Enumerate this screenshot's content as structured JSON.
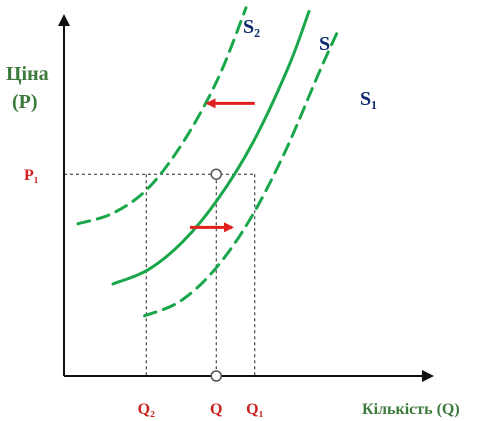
{
  "chart_data": {
    "type": "line",
    "title": "",
    "ylabel": [
      "Ціна",
      "(P)"
    ],
    "xlabel": "Кількість (Q)",
    "xlim": [
      0,
      10
    ],
    "ylim": [
      0,
      10
    ],
    "grid": false,
    "series": [
      {
        "name": "S",
        "style": "solid",
        "color": "#1aa64b",
        "points": [
          [
            1.4,
            2.6
          ],
          [
            2.4,
            3.0
          ],
          [
            3.4,
            3.8
          ],
          [
            4.4,
            5.0
          ],
          [
            5.4,
            6.6
          ],
          [
            6.4,
            8.7
          ],
          [
            7.0,
            10.3
          ]
        ]
      },
      {
        "name": "S₂",
        "style": "dashed",
        "color": "#1aa64b",
        "points": [
          [
            0.4,
            4.3
          ],
          [
            1.4,
            4.6
          ],
          [
            2.4,
            5.3
          ],
          [
            3.4,
            6.6
          ],
          [
            4.4,
            8.4
          ],
          [
            5.2,
            10.4
          ]
        ]
      },
      {
        "name": "S₁",
        "style": "dashed",
        "color": "#1aa64b",
        "points": [
          [
            2.3,
            1.7
          ],
          [
            3.3,
            2.1
          ],
          [
            4.3,
            3.0
          ],
          [
            5.3,
            4.4
          ],
          [
            6.3,
            6.3
          ],
          [
            7.3,
            8.6
          ],
          [
            7.85,
            9.8
          ]
        ]
      }
    ],
    "price_level": {
      "label": "P₁",
      "value": 5.7
    },
    "quantity_marks": [
      {
        "label": "Q₂",
        "value": 2.35
      },
      {
        "label": "Q",
        "value": 4.35
      },
      {
        "label": "Q₁",
        "value": 5.45
      }
    ],
    "arrows": [
      {
        "from": [
          5.45,
          7.7
        ],
        "to": [
          4.1,
          7.7
        ],
        "color": "#e32020"
      },
      {
        "from": [
          3.6,
          4.2
        ],
        "to": [
          4.8,
          4.2
        ],
        "color": "#e32020"
      }
    ],
    "colors": {
      "axis": "#111111",
      "curve": "#1aa64b",
      "arrow": "#e32020",
      "price_label": "#d42020",
      "quantity_label": "#c8241e",
      "axis_title": "#3c7a3c",
      "series_label": "#0b2a6e"
    }
  }
}
